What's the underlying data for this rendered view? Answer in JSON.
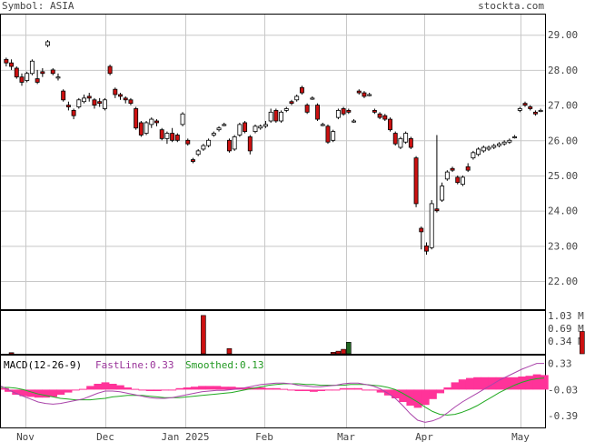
{
  "header": {
    "symbol_label": "Symbol: ASIA",
    "brand": "stockta.com"
  },
  "chart_data": [
    {
      "type": "candlestick",
      "panel": "price",
      "y_axis_ticks": [
        "22.00",
        "23.00",
        "24.00",
        "25.00",
        "26.00",
        "27.00",
        "28.00",
        "29.00"
      ],
      "ylim": [
        21.2,
        29.6
      ],
      "x_axis_ticks": [
        "Nov",
        "Dec",
        "Jan 2025",
        "Feb",
        "Mar",
        "Apr",
        "May"
      ],
      "colors": {
        "up": "#ffffff",
        "down": "#cc1111",
        "wick": "#000000",
        "grid": "#c8c8c8"
      },
      "candles": [
        [
          28.3,
          28.35,
          28.1,
          28.2
        ],
        [
          28.2,
          28.3,
          28.0,
          28.1
        ],
        [
          28.05,
          28.1,
          27.75,
          27.8
        ],
        [
          27.8,
          27.9,
          27.55,
          27.65
        ],
        [
          27.7,
          27.95,
          27.65,
          27.9
        ],
        [
          27.9,
          28.3,
          27.85,
          28.25
        ],
        [
          27.75,
          28.0,
          27.6,
          27.65
        ],
        [
          27.95,
          28.05,
          27.8,
          27.9
        ],
        [
          28.7,
          28.85,
          28.65,
          28.8
        ],
        [
          28.0,
          28.05,
          27.85,
          27.9
        ],
        [
          27.8,
          27.9,
          27.7,
          27.8
        ],
        [
          27.4,
          27.45,
          27.1,
          27.15
        ],
        [
          27.0,
          27.1,
          26.85,
          26.95
        ],
        [
          26.85,
          26.9,
          26.6,
          26.7
        ],
        [
          26.95,
          27.2,
          26.9,
          27.15
        ],
        [
          27.1,
          27.3,
          27.05,
          27.2
        ],
        [
          27.25,
          27.35,
          27.1,
          27.2
        ],
        [
          27.15,
          27.2,
          26.9,
          27.0
        ],
        [
          27.1,
          27.2,
          26.95,
          27.05
        ],
        [
          26.9,
          27.2,
          26.85,
          27.15
        ],
        [
          28.1,
          28.15,
          27.85,
          27.9
        ],
        [
          27.45,
          27.5,
          27.2,
          27.3
        ],
        [
          27.3,
          27.35,
          27.15,
          27.25
        ],
        [
          27.2,
          27.25,
          27.05,
          27.15
        ],
        [
          27.15,
          27.2,
          27.0,
          27.05
        ],
        [
          26.9,
          26.95,
          26.3,
          26.35
        ],
        [
          26.5,
          26.55,
          26.1,
          26.15
        ],
        [
          26.2,
          26.55,
          26.15,
          26.5
        ],
        [
          26.45,
          26.65,
          26.35,
          26.6
        ],
        [
          26.55,
          26.6,
          26.4,
          26.5
        ],
        [
          26.3,
          26.35,
          26.0,
          26.05
        ],
        [
          26.05,
          26.25,
          25.9,
          26.2
        ],
        [
          26.2,
          26.35,
          25.95,
          26.0
        ],
        [
          26.15,
          26.2,
          25.95,
          26.0
        ],
        [
          26.45,
          26.8,
          26.4,
          26.75
        ],
        [
          26.0,
          26.05,
          25.85,
          25.9
        ],
        [
          25.45,
          25.5,
          25.35,
          25.4
        ],
        [
          25.6,
          25.75,
          25.55,
          25.7
        ],
        [
          25.75,
          25.9,
          25.7,
          25.85
        ],
        [
          25.85,
          26.05,
          25.8,
          26.0
        ],
        [
          26.15,
          26.25,
          26.1,
          26.2
        ],
        [
          26.3,
          26.4,
          26.25,
          26.35
        ],
        [
          26.45,
          26.5,
          26.4,
          26.45
        ],
        [
          26.0,
          26.05,
          25.65,
          25.7
        ],
        [
          25.75,
          26.15,
          25.7,
          26.1
        ],
        [
          26.15,
          26.5,
          26.1,
          26.45
        ],
        [
          26.5,
          26.55,
          26.2,
          26.25
        ],
        [
          26.1,
          26.15,
          25.6,
          25.7
        ],
        [
          26.25,
          26.45,
          26.2,
          26.4
        ],
        [
          26.35,
          26.45,
          26.3,
          26.4
        ],
        [
          26.4,
          26.55,
          26.35,
          26.45
        ],
        [
          26.55,
          26.9,
          26.5,
          26.8
        ],
        [
          26.85,
          26.9,
          26.5,
          26.55
        ],
        [
          26.55,
          26.85,
          26.5,
          26.8
        ],
        [
          26.85,
          26.95,
          26.8,
          26.9
        ],
        [
          27.1,
          27.15,
          27.0,
          27.05
        ],
        [
          27.15,
          27.3,
          27.1,
          27.25
        ],
        [
          27.5,
          27.55,
          27.3,
          27.35
        ],
        [
          27.0,
          27.05,
          26.75,
          26.8
        ],
        [
          27.2,
          27.25,
          27.15,
          27.2
        ],
        [
          27.0,
          27.05,
          26.55,
          26.6
        ],
        [
          26.45,
          26.5,
          26.4,
          26.45
        ],
        [
          26.4,
          26.45,
          25.9,
          25.95
        ],
        [
          26.0,
          26.3,
          25.95,
          26.25
        ],
        [
          26.65,
          26.9,
          26.6,
          26.85
        ],
        [
          26.9,
          26.95,
          26.7,
          26.75
        ],
        [
          26.85,
          26.9,
          26.75,
          26.8
        ],
        [
          26.55,
          26.6,
          26.5,
          26.55
        ],
        [
          27.4,
          27.45,
          27.3,
          27.35
        ],
        [
          27.35,
          27.4,
          27.2,
          27.25
        ],
        [
          27.3,
          27.35,
          27.25,
          27.3
        ],
        [
          26.85,
          26.9,
          26.75,
          26.8
        ],
        [
          26.75,
          26.8,
          26.6,
          26.65
        ],
        [
          26.7,
          26.75,
          26.55,
          26.6
        ],
        [
          26.6,
          26.65,
          26.25,
          26.3
        ],
        [
          26.2,
          26.25,
          25.85,
          25.9
        ],
        [
          25.8,
          26.1,
          25.75,
          26.05
        ],
        [
          25.95,
          26.25,
          25.9,
          26.2
        ],
        [
          26.05,
          26.1,
          25.75,
          25.8
        ],
        [
          25.5,
          25.55,
          24.1,
          24.2
        ],
        [
          23.5,
          23.55,
          22.9,
          23.4
        ],
        [
          23.0,
          23.1,
          22.75,
          22.85
        ],
        [
          22.95,
          24.3,
          22.9,
          24.2
        ],
        [
          24.05,
          26.15,
          23.95,
          24.0
        ],
        [
          24.3,
          24.8,
          24.25,
          24.7
        ],
        [
          24.9,
          25.15,
          24.85,
          25.1
        ],
        [
          25.2,
          25.25,
          25.1,
          25.15
        ],
        [
          24.95,
          25.0,
          24.75,
          24.8
        ],
        [
          24.75,
          25.0,
          24.7,
          24.95
        ],
        [
          25.25,
          25.35,
          25.1,
          25.15
        ],
        [
          25.5,
          25.7,
          25.45,
          25.65
        ],
        [
          25.6,
          25.8,
          25.55,
          25.75
        ],
        [
          25.7,
          25.85,
          25.65,
          25.8
        ],
        [
          25.75,
          25.85,
          25.7,
          25.8
        ],
        [
          25.8,
          25.9,
          25.75,
          25.85
        ],
        [
          25.85,
          25.95,
          25.8,
          25.9
        ],
        [
          25.9,
          26.0,
          25.85,
          25.95
        ],
        [
          25.95,
          26.05,
          25.9,
          26.0
        ],
        [
          26.1,
          26.15,
          26.05,
          26.1
        ],
        [
          26.85,
          26.95,
          26.8,
          26.9
        ],
        [
          27.05,
          27.1,
          26.95,
          27.0
        ],
        [
          26.95,
          27.0,
          26.85,
          26.9
        ],
        [
          26.8,
          26.85,
          26.7,
          26.75
        ],
        [
          26.85,
          26.9,
          26.8,
          26.85
        ]
      ]
    },
    {
      "type": "bar",
      "panel": "volume",
      "y_axis_ticks": [
        "1.03 M",
        "0.69 M",
        "0.34 M"
      ],
      "ylim": [
        0,
        1.1
      ],
      "colors": {
        "up": "#226622",
        "down": "#cc1111"
      },
      "bars": [
        {
          "i": 1,
          "v": 0.03,
          "dir": "down"
        },
        {
          "i": 38,
          "v": 1.03,
          "dir": "down"
        },
        {
          "i": 43,
          "v": 0.14,
          "dir": "down"
        },
        {
          "i": 63,
          "v": 0.04,
          "dir": "down"
        },
        {
          "i": 64,
          "v": 0.07,
          "dir": "down"
        },
        {
          "i": 65,
          "v": 0.12,
          "dir": "down"
        },
        {
          "i": 66,
          "v": 0.31,
          "dir": "up"
        },
        {
          "i": 111,
          "v": 0.6,
          "dir": "down"
        }
      ]
    },
    {
      "type": "line",
      "panel": "macd",
      "label": "MACD(12-26-9)",
      "fast_label": "FastLine:",
      "fast_value": "0.33",
      "smoothed_label": "Smoothed:",
      "smoothed_value": "0.13",
      "y_axis_ticks": [
        "0.33",
        "-0.03",
        "-0.39"
      ],
      "ylim": [
        -0.55,
        0.45
      ],
      "colors": {
        "fast": "#aa44aa",
        "smoothed": "#22aa22",
        "histogram": "#ff3399",
        "label_fast": "#993399",
        "label_smoothed": "#229922"
      },
      "fast": [
        0.02,
        -0.03,
        -0.08,
        -0.12,
        -0.16,
        -0.2,
        -0.22,
        -0.23,
        -0.22,
        -0.2,
        -0.18,
        -0.16,
        -0.12,
        -0.08,
        -0.05,
        -0.05,
        -0.06,
        -0.08,
        -0.1,
        -0.12,
        -0.14,
        -0.15,
        -0.15,
        -0.14,
        -0.12,
        -0.1,
        -0.08,
        -0.06,
        -0.05,
        -0.04,
        -0.04,
        -0.03,
        -0.02,
        0.0,
        0.02,
        0.04,
        0.05,
        0.06,
        0.06,
        0.05,
        0.03,
        0.02,
        0.01,
        0.01,
        0.02,
        0.03,
        0.05,
        0.06,
        0.06,
        0.04,
        0.02,
        -0.02,
        -0.08,
        -0.15,
        -0.25,
        -0.36,
        -0.45,
        -0.48,
        -0.46,
        -0.42,
        -0.35,
        -0.27,
        -0.2,
        -0.14,
        -0.08,
        -0.02,
        0.04,
        0.1,
        0.15,
        0.2,
        0.25,
        0.29,
        0.33,
        0.33
      ],
      "smoothed": [
        0.0,
        0.0,
        -0.01,
        -0.03,
        -0.06,
        -0.09,
        -0.11,
        -0.13,
        -0.15,
        -0.16,
        -0.17,
        -0.17,
        -0.17,
        -0.16,
        -0.15,
        -0.13,
        -0.12,
        -0.11,
        -0.11,
        -0.11,
        -0.12,
        -0.13,
        -0.14,
        -0.14,
        -0.14,
        -0.13,
        -0.12,
        -0.11,
        -0.1,
        -0.09,
        -0.08,
        -0.07,
        -0.05,
        -0.03,
        -0.01,
        0.01,
        0.03,
        0.04,
        0.05,
        0.05,
        0.05,
        0.04,
        0.04,
        0.03,
        0.03,
        0.03,
        0.03,
        0.04,
        0.04,
        0.04,
        0.03,
        0.02,
        0.0,
        -0.03,
        -0.08,
        -0.14,
        -0.2,
        -0.27,
        -0.33,
        -0.37,
        -0.38,
        -0.37,
        -0.34,
        -0.3,
        -0.25,
        -0.19,
        -0.13,
        -0.07,
        -0.02,
        0.03,
        0.07,
        0.1,
        0.12,
        0.13
      ]
    }
  ]
}
